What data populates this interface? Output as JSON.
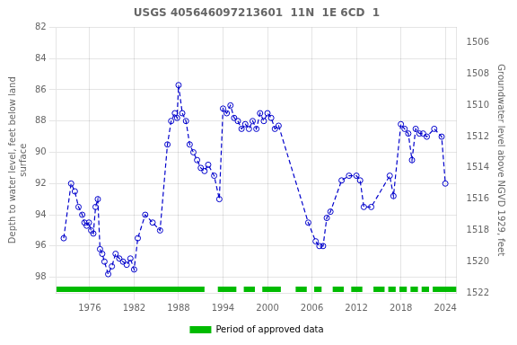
{
  "chart_data": {
    "type": "line",
    "title": "USGS 405646097213601  11N  1E 6CD  1",
    "y_label": "Depth to water level, feet below land\nsurface",
    "y2_label": "Groundwater level above NGVD 1929, feet",
    "x": [
      1972.5,
      1973.5,
      1974.0,
      1974.5,
      1975.0,
      1975.3,
      1975.6,
      1975.9,
      1976.2,
      1976.5,
      1976.8,
      1977.1,
      1977.4,
      1977.7,
      1978.0,
      1978.5,
      1979.0,
      1979.5,
      1980.0,
      1980.5,
      1981.0,
      1981.5,
      1982.0,
      1982.5,
      1983.5,
      1984.5,
      1985.5,
      1986.5,
      1987.0,
      1987.5,
      1987.8,
      1988.0,
      1988.5,
      1989.0,
      1989.5,
      1990.0,
      1990.5,
      1991.0,
      1991.5,
      1992.0,
      1992.8,
      1993.5,
      1994.0,
      1994.5,
      1995.0,
      1995.5,
      1996.0,
      1996.5,
      1997.0,
      1997.5,
      1998.0,
      1998.5,
      1999.0,
      1999.5,
      2000.0,
      2000.5,
      2001.0,
      2001.5,
      2005.5,
      2006.5,
      2007.0,
      2007.5,
      2008.0,
      2008.5,
      2010.0,
      2011.0,
      2012.0,
      2012.5,
      2013.0,
      2014.0,
      2016.5,
      2017.0,
      2018.0,
      2018.5,
      2019.0,
      2019.5,
      2020.0,
      2020.5,
      2021.0,
      2021.5,
      2022.5,
      2023.5,
      2024.0
    ],
    "series": [
      {
        "color": "#0000cc",
        "line_style": "dashed",
        "marker": "circle",
        "values": [
          95.5,
          92.0,
          92.5,
          93.5,
          94.0,
          94.5,
          94.7,
          94.5,
          95.0,
          95.2,
          93.5,
          93.0,
          96.2,
          96.5,
          97.0,
          97.8,
          97.3,
          96.5,
          96.8,
          97.0,
          97.2,
          96.8,
          97.5,
          95.5,
          94.0,
          94.5,
          95.0,
          89.5,
          88.0,
          87.5,
          87.8,
          85.7,
          87.5,
          88.0,
          89.5,
          90.0,
          90.5,
          91.0,
          91.2,
          90.8,
          91.5,
          93.0,
          87.2,
          87.5,
          87.0,
          87.8,
          88.0,
          88.5,
          88.2,
          88.5,
          88.0,
          88.5,
          87.5,
          88.0,
          87.5,
          87.8,
          88.5,
          88.3,
          94.5,
          95.7,
          96.0,
          96.0,
          94.2,
          93.8,
          91.8,
          91.5,
          91.5,
          91.8,
          93.5,
          93.5,
          91.5,
          92.8,
          88.2,
          88.5,
          88.8,
          90.5,
          88.5,
          88.8,
          88.8,
          89.0,
          88.5,
          89.0,
          92.0
        ]
      }
    ],
    "approved_periods": {
      "name": "Period of approved data",
      "color": "#00bb00",
      "ranges": [
        [
          1971.5,
          1991.5
        ],
        [
          1993.3,
          1995.8
        ],
        [
          1996.8,
          1998.3
        ],
        [
          1999.3,
          2001.8
        ],
        [
          2003.8,
          2005.3
        ],
        [
          2006.3,
          2007.3
        ],
        [
          2008.8,
          2010.3
        ],
        [
          2011.3,
          2012.8
        ],
        [
          2014.3,
          2015.8
        ],
        [
          2016.3,
          2017.3
        ],
        [
          2017.8,
          2018.8
        ],
        [
          2019.3,
          2020.3
        ],
        [
          2020.8,
          2021.8
        ],
        [
          2022.3,
          2025.5
        ]
      ]
    },
    "xlim": [
      1971.5,
      2025.5
    ],
    "xticks": [
      1976,
      1982,
      1988,
      1994,
      2000,
      2006,
      2012,
      2018,
      2024
    ],
    "ylim": [
      99,
      82
    ],
    "yticks": [
      82,
      84,
      86,
      88,
      90,
      92,
      94,
      96,
      98
    ],
    "y2lim": [
      1522,
      1505
    ],
    "y2ticks": [
      1522,
      1520,
      1518,
      1516,
      1514,
      1512,
      1510,
      1508,
      1506
    ],
    "grid": true,
    "legend": "bottom"
  }
}
